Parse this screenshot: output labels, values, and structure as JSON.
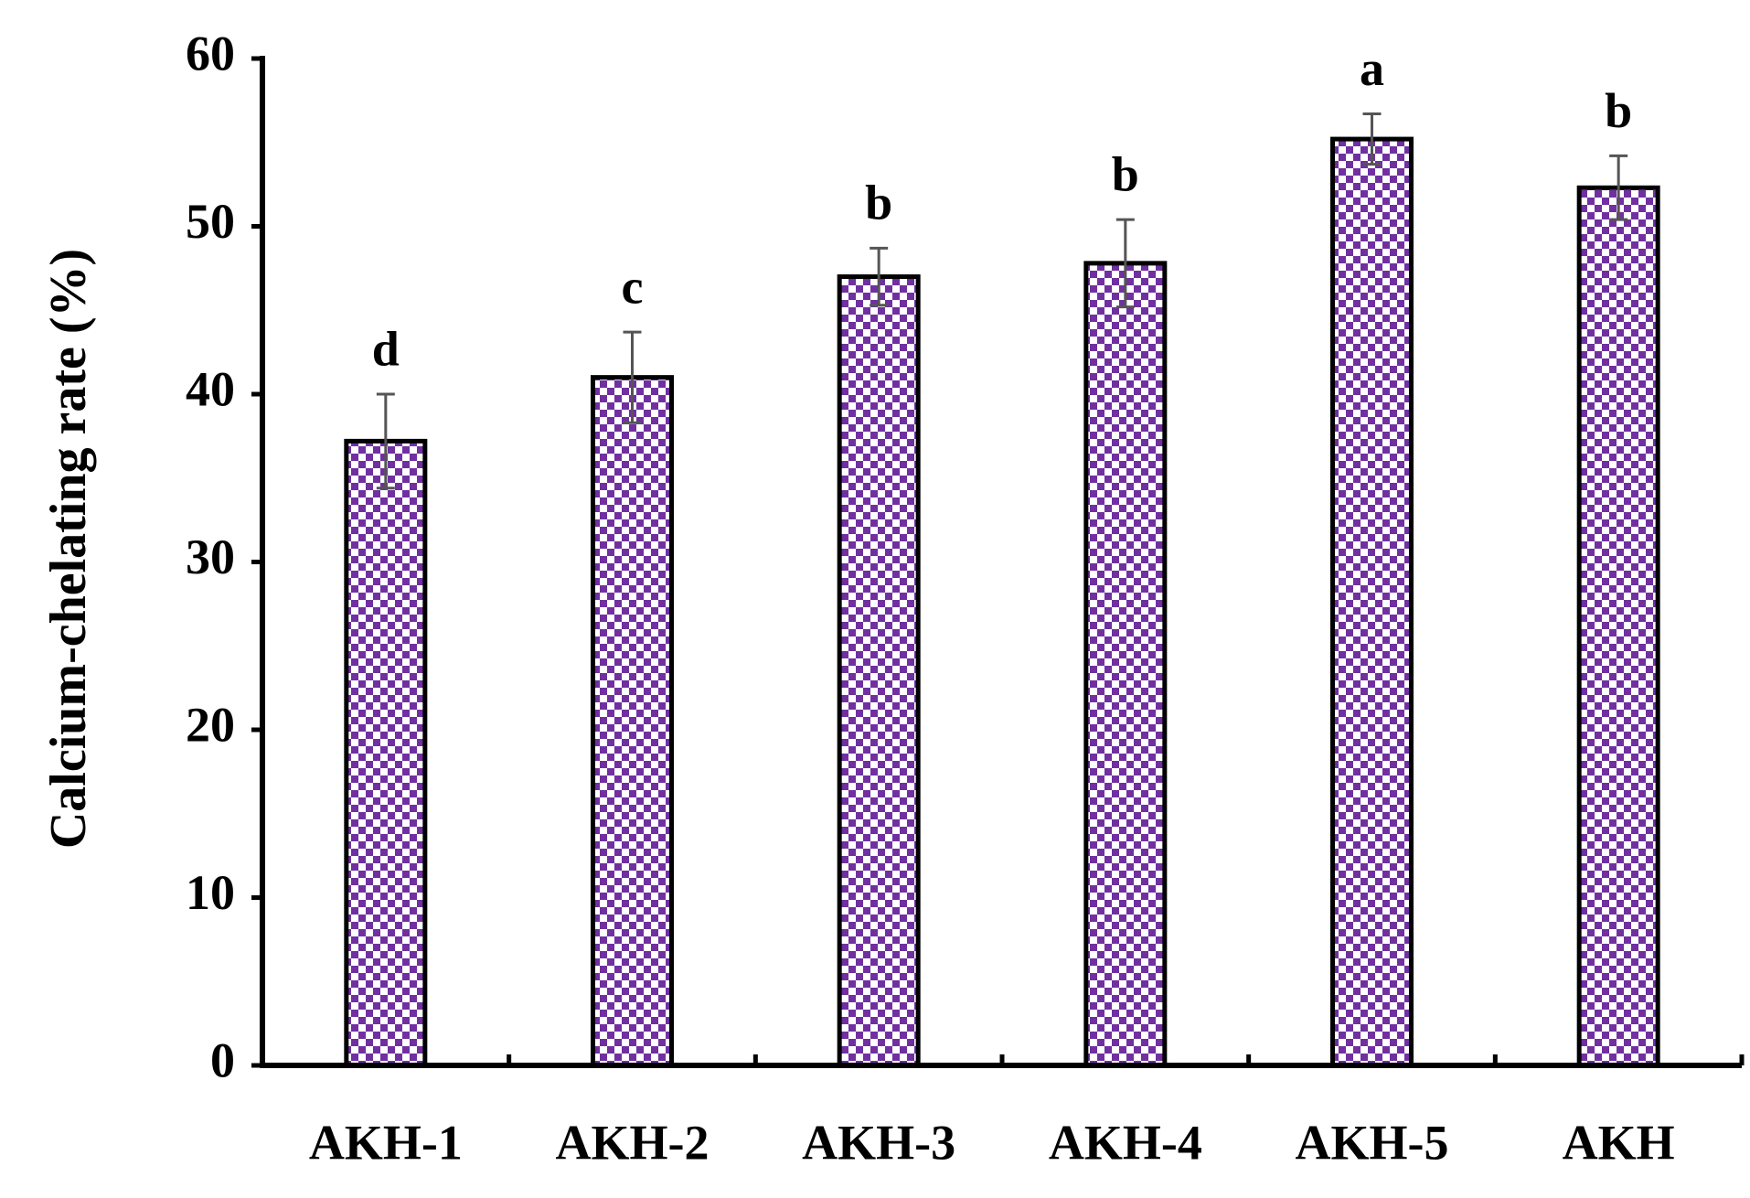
{
  "chart_data": {
    "type": "bar",
    "y_label": "Calcium-chelating rate (%)",
    "categories": [
      "AKH-1",
      "AKH-2",
      "AKH-3",
      "AKH-4",
      "AKH-5",
      "AKH"
    ],
    "values": [
      37.2,
      41.0,
      47.0,
      47.8,
      55.2,
      52.3
    ],
    "errors": [
      2.8,
      2.7,
      1.7,
      2.6,
      1.5,
      1.9
    ],
    "annotations": [
      "d",
      "c",
      "b",
      "b",
      "a",
      "b"
    ],
    "color": "#7030a0",
    "ylim": [
      0,
      60
    ],
    "yticks": [
      0,
      10,
      20,
      30,
      40,
      50,
      60
    ],
    "grid": false
  }
}
